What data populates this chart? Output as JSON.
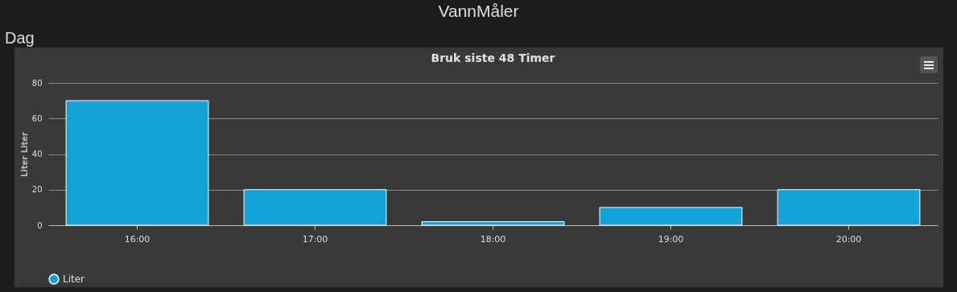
{
  "chart_data": {
    "type": "bar",
    "title": "Bruk siste 48 Timer",
    "ylabel": "Liter Liter",
    "annotations": [
      "VannMåler",
      "Dag"
    ],
    "categories": [
      "16:00",
      "17:00",
      "18:00",
      "19:00",
      "20:00"
    ],
    "series": [
      {
        "name": "Liter",
        "color": "#12a4d8",
        "values": [
          70,
          20,
          2,
          10,
          20
        ]
      }
    ],
    "ylim": [
      0,
      80
    ],
    "yticks": [
      0,
      20,
      40,
      60,
      80
    ],
    "grid": "y",
    "legend": "bottom"
  }
}
